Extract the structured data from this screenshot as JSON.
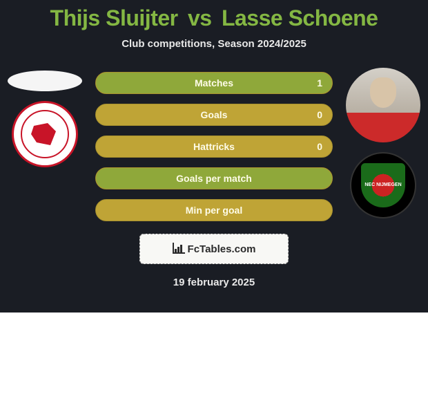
{
  "header": {
    "player1": "Thijs Sluijter",
    "vs": "vs",
    "player2": "Lasse Schoene",
    "title_color": "#84b743",
    "subtitle": "Club competitions, Season 2024/2025"
  },
  "left": {
    "crest_label": "Almere City"
  },
  "right": {
    "crest_label": "NEC Nijmegen",
    "crest_text": "NEC\nNIJMEGEN"
  },
  "bars": {
    "rows": [
      {
        "label": "Matches",
        "left": "",
        "right": "1",
        "fill_side": "right",
        "fill_pct": 100
      },
      {
        "label": "Goals",
        "left": "",
        "right": "0",
        "fill_side": "none",
        "fill_pct": 0
      },
      {
        "label": "Hattricks",
        "left": "",
        "right": "0",
        "fill_side": "none",
        "fill_pct": 0
      },
      {
        "label": "Goals per match",
        "left": "",
        "right": "",
        "fill_side": "right",
        "fill_pct": 100
      },
      {
        "label": "Min per goal",
        "left": "",
        "right": "",
        "fill_side": "none",
        "fill_pct": 0
      }
    ],
    "track_color": "#bfa436",
    "fill_color": "#8fa83a",
    "label_color": "#fefce8"
  },
  "footer": {
    "brand": "FcTables.com",
    "date": "19 february 2025"
  },
  "colors": {
    "bg": "#1a1d24",
    "text": "#e8e8e8"
  }
}
